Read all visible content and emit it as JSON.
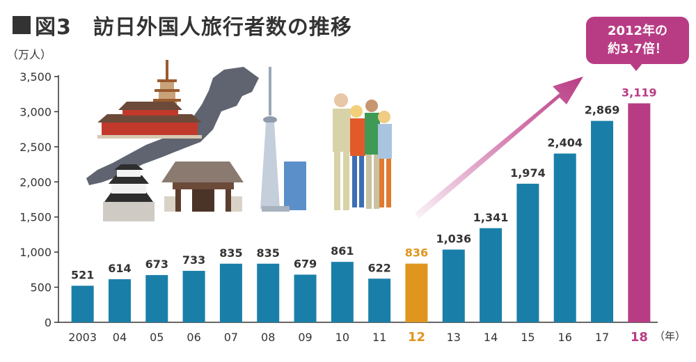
{
  "title": {
    "text": "図3　訪日外国人旅行者数の推移"
  },
  "callout": {
    "line1": "2012年の",
    "line2": "約3.7倍！"
  },
  "colors": {
    "bar": "#1a7fa8",
    "highlight_2012": "#e0951e",
    "highlight_2018": "#b83c84",
    "text": "#333333"
  },
  "chart_data": {
    "type": "bar",
    "ylabel": "（万人）",
    "xlabel": "（年）",
    "ylim": [
      0,
      3500
    ],
    "yticks": [
      0,
      500,
      1000,
      1500,
      2000,
      2500,
      3000,
      3500
    ],
    "ytick_labels": [
      "0",
      "500",
      "1,000",
      "1,500",
      "2,000",
      "2,500",
      "3,000",
      "3,500"
    ],
    "categories": [
      "2003",
      "04",
      "05",
      "06",
      "07",
      "08",
      "09",
      "10",
      "11",
      "12",
      "13",
      "14",
      "15",
      "16",
      "17",
      "18"
    ],
    "values": [
      521,
      614,
      673,
      733,
      835,
      835,
      679,
      861,
      622,
      836,
      1036,
      1341,
      1974,
      2404,
      2869,
      3119
    ],
    "value_labels": [
      "521",
      "614",
      "673",
      "733",
      "835",
      "835",
      "679",
      "861",
      "622",
      "836",
      "1,036",
      "1,341",
      "1,974",
      "2,404",
      "2,869",
      "3,119"
    ],
    "highlights": {
      "12": "highlight_2012",
      "18": "highlight_2018"
    },
    "grid": false
  }
}
